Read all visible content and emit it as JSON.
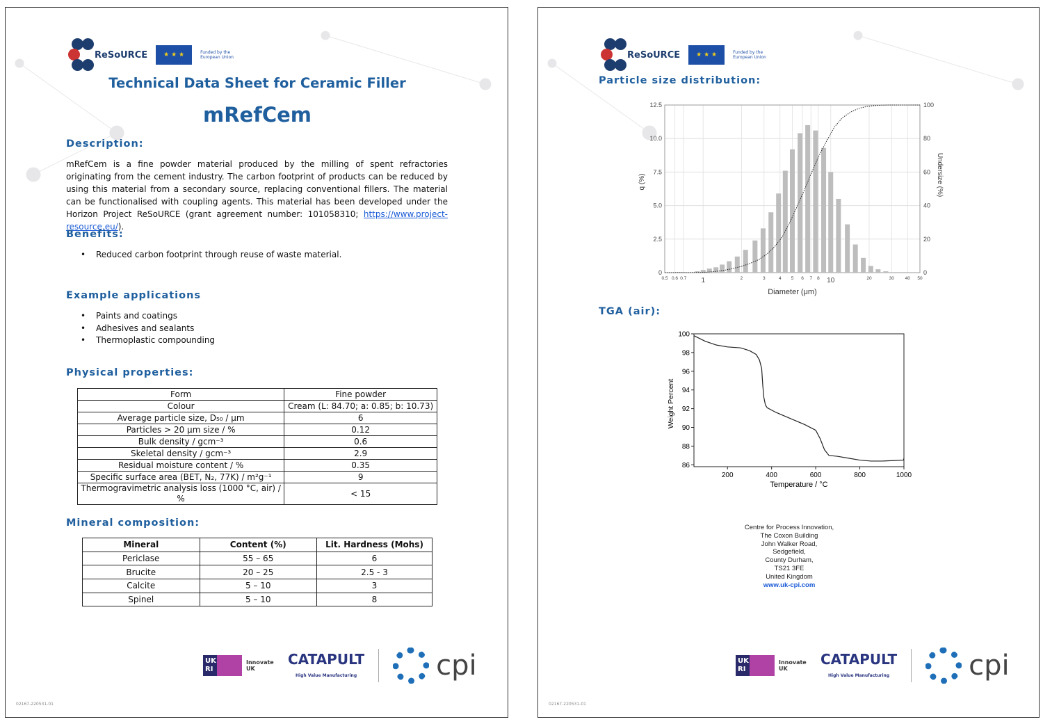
{
  "page1": {
    "logo": {
      "resource": "ReSoURCE",
      "eu": "Funded by the European Union"
    },
    "title": "Technical Data Sheet for Ceramic Filler",
    "product": "mRefCem",
    "description": {
      "heading": "Description:",
      "text": "mRefCem is a fine powder material produced by the milling of spent refractories originating from the cement industry. The carbon footprint of products can be reduced by using this material from a secondary source, replacing conventional fillers. The material can be functionalised with coupling agents. This material has been developed under the Horizon Project ReSoURCE (grant agreement number: 101058310; ",
      "link": "https://www.project-resource.eu/",
      "tail": ")."
    },
    "benefits": {
      "heading": "Benefits:",
      "items": [
        "Reduced carbon footprint through reuse of waste material."
      ]
    },
    "applications": {
      "heading": "Example applications",
      "items": [
        "Paints and coatings",
        "Adhesives and sealants",
        "Thermoplastic compounding"
      ]
    },
    "physical": {
      "heading": "Physical properties:",
      "rows": [
        [
          "Form",
          "Fine powder"
        ],
        [
          "Colour",
          "Cream (L: 84.70; a: 0.85; b: 10.73)"
        ],
        [
          "Average particle size, D₅₀ / μm",
          "6"
        ],
        [
          "Particles > 20 μm size / %",
          "0.12"
        ],
        [
          "Bulk density / gcm⁻³",
          "0.6"
        ],
        [
          "Skeletal density / gcm⁻³",
          "2.9"
        ],
        [
          "Residual moisture content / %",
          "0.35"
        ],
        [
          "Specific surface area (BET, N₂, 77K) / m²g⁻¹",
          "9"
        ],
        [
          "Thermogravimetric analysis loss (1000 °C, air) / %",
          "< 15"
        ]
      ]
    },
    "mineral": {
      "heading": "Mineral composition:",
      "headers": [
        "Mineral",
        "Content (%)",
        "Lit. Hardness (Mohs)"
      ],
      "rows": [
        [
          "Periclase",
          "55 – 65",
          "6"
        ],
        [
          "Brucite",
          "20 – 25",
          "2.5 - 3"
        ],
        [
          "Calcite",
          "5 – 10",
          "3"
        ],
        [
          "Spinel",
          "5 – 10",
          "8"
        ]
      ]
    },
    "footer": {
      "innovate": "Innovate UK",
      "catapult": "CATAPULT",
      "catapult_sub": "High Value Manufacturing",
      "cpi": "cpi",
      "code": "02167-220531-01"
    }
  },
  "page2": {
    "psd_heading": "Particle size distribution:",
    "tga_heading": "TGA (air):",
    "address": [
      "Centre for Process Innovation,",
      "The Coxon Building",
      "John Walker Road,",
      "Sedgefield,",
      "County Durham,",
      "TS21 3FE",
      "United Kingdom"
    ],
    "website": "www.uk-cpi.com",
    "footer": {
      "innovate": "Innovate UK",
      "catapult": "CATAPULT",
      "catapult_sub": "High Value Manufacturing",
      "cpi": "cpi",
      "code": "02167-220531-01"
    }
  },
  "chart_data": [
    {
      "type": "bar",
      "title": "Particle size distribution",
      "xlabel": "Diameter (μm)",
      "ylabel": "q (%)",
      "y2label": "Undersize (%)",
      "xscale": "log",
      "xlim": [
        0.5,
        50
      ],
      "ylim": [
        0,
        12.5
      ],
      "y2lim": [
        0,
        100
      ],
      "xticks": [
        "0.5",
        "0.6",
        "0.7",
        "1",
        "2",
        "3",
        "4",
        "5",
        "6",
        "7",
        "8",
        "10",
        "20",
        "30",
        "40",
        "50"
      ],
      "yticks": [
        "0",
        "2.5",
        "5.0",
        "7.5",
        "10.0",
        "12.5"
      ],
      "y2ticks": [
        "0",
        "20",
        "40",
        "60",
        "80",
        "100"
      ],
      "x": [
        0.9,
        1.0,
        1.12,
        1.26,
        1.41,
        1.6,
        1.85,
        2.15,
        2.55,
        2.95,
        3.4,
        3.9,
        4.4,
        5.0,
        5.75,
        6.6,
        7.6,
        8.8,
        10.0,
        11.5,
        13.5,
        15.6,
        18.0,
        20.6,
        23.5,
        27.0
      ],
      "values": [
        0.1,
        0.2,
        0.3,
        0.4,
        0.6,
        0.85,
        1.2,
        1.7,
        2.4,
        3.3,
        4.5,
        5.9,
        7.6,
        9.2,
        10.4,
        11.0,
        10.6,
        9.3,
        7.5,
        5.5,
        3.6,
        2.1,
        1.1,
        0.5,
        0.25,
        0.1
      ],
      "series_line": "Undersize (cumulative, dotted)"
    },
    {
      "type": "line",
      "title": "TGA (air)",
      "xlabel": "Temperature / °C",
      "ylabel": "Weight Percent",
      "xlim": [
        48,
        1000
      ],
      "ylim": [
        85.8,
        100
      ],
      "xticks": [
        "200",
        "400",
        "600",
        "800",
        "1000"
      ],
      "yticks": [
        "86",
        "88",
        "90",
        "92",
        "94",
        "96",
        "98",
        "100"
      ],
      "x": [
        48,
        100,
        150,
        200,
        260,
        300,
        330,
        345,
        355,
        360,
        365,
        372,
        380,
        420,
        480,
        550,
        600,
        620,
        640,
        660,
        700,
        750,
        800,
        850,
        900,
        950,
        998,
        1000
      ],
      "y": [
        99.8,
        99.2,
        98.8,
        98.6,
        98.5,
        98.2,
        97.8,
        97.2,
        96.3,
        94.5,
        93.2,
        92.4,
        92.1,
        91.6,
        91.0,
        90.3,
        89.7,
        88.8,
        87.6,
        87.0,
        86.9,
        86.7,
        86.5,
        86.4,
        86.4,
        86.45,
        86.5,
        86.7
      ]
    }
  ]
}
